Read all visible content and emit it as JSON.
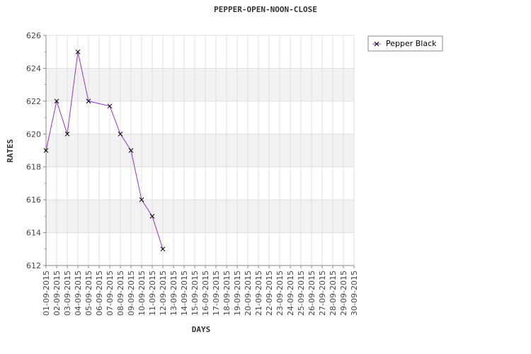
{
  "chart_data": {
    "type": "line",
    "title": "PEPPER-OPEN-NOON-CLOSE",
    "xlabel": "DAYS",
    "ylabel": "RATES",
    "ylim": [
      612,
      626
    ],
    "yticks": [
      612,
      614,
      616,
      618,
      620,
      622,
      624,
      626
    ],
    "categories": [
      "01-09-2015",
      "02-09-2015",
      "03-09-2015",
      "04-09-2015",
      "05-09-2015",
      "06-09-2015",
      "07-09-2015",
      "08-09-2015",
      "09-09-2015",
      "10-09-2015",
      "11-09-2015",
      "12-09-2015",
      "13-09-2015",
      "14-09-2015",
      "15-09-2015",
      "16-09-2015",
      "17-09-2015",
      "18-09-2015",
      "19-09-2015",
      "20-09-2015",
      "21-09-2015",
      "22-09-2015",
      "23-09-2015",
      "24-09-2015",
      "25-09-2015",
      "26-09-2015",
      "27-09-2015",
      "28-09-2015",
      "29-09-2015",
      "30-09-2015"
    ],
    "series": [
      {
        "name": "Pepper Black",
        "color": "#9933cc",
        "marker_color": "#000000",
        "points": [
          {
            "x": "01-09-2015",
            "y": 619
          },
          {
            "x": "02-09-2015",
            "y": 622
          },
          {
            "x": "03-09-2015",
            "y": 620
          },
          {
            "x": "04-09-2015",
            "y": 625
          },
          {
            "x": "05-09-2015",
            "y": 622
          },
          {
            "x": "07-09-2015",
            "y": 621.7
          },
          {
            "x": "08-09-2015",
            "y": 620
          },
          {
            "x": "09-09-2015",
            "y": 619
          },
          {
            "x": "10-09-2015",
            "y": 616
          },
          {
            "x": "11-09-2015",
            "y": 615
          },
          {
            "x": "12-09-2015",
            "y": 613
          }
        ]
      }
    ],
    "grid": true,
    "band_color": "#f2f2f2",
    "legend": "top-right"
  }
}
